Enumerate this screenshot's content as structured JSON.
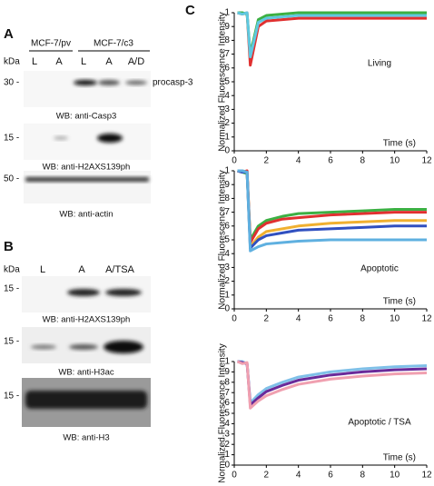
{
  "panel_a": {
    "label": "A",
    "groups": [
      "MCF-7/pv",
      "MCF-7/c3"
    ],
    "kda": "kDa",
    "lanes": [
      "L",
      "A",
      "L",
      "A",
      "A/D"
    ],
    "blots": [
      {
        "marker": "30 -",
        "annotation": "procasp-3",
        "caption": "WB: anti-Casp3"
      },
      {
        "marker": "15 -",
        "caption": "WB: anti-H2AXS139ph"
      },
      {
        "marker": "50 -",
        "caption": "WB: anti-actin"
      }
    ]
  },
  "panel_b": {
    "label": "B",
    "kda": "kDa",
    "lanes": [
      "L",
      "A",
      "A/TSA"
    ],
    "blots": [
      {
        "marker": "15 -",
        "caption": "WB: anti-H2AXS139ph"
      },
      {
        "marker": "15 -",
        "caption": "WB: anti-H3ac"
      },
      {
        "marker": "15 -",
        "caption": "WB: anti-H3"
      }
    ]
  },
  "panel_c": {
    "label": "C"
  },
  "chart_data": [
    {
      "type": "line",
      "annotation": "Living",
      "ylabel": "Normalized Fluorescence Intensity",
      "xlabel": "Time (s)",
      "x": [
        0.2,
        0.5,
        0.8,
        1,
        1.5,
        2,
        3,
        4,
        6,
        8,
        10,
        12
      ],
      "series": [
        {
          "color": "#e03030",
          "values": [
            1,
            0.99,
            1,
            0.62,
            0.9,
            0.94,
            0.95,
            0.96,
            0.96,
            0.96,
            0.96,
            0.96
          ]
        },
        {
          "color": "#3cb043",
          "values": [
            1,
            1,
            0.99,
            0.7,
            0.95,
            0.98,
            0.99,
            1,
            1,
            1,
            1,
            1
          ]
        },
        {
          "color": "#5fc8e0",
          "values": [
            1,
            0.99,
            1,
            0.68,
            0.93,
            0.96,
            0.97,
            0.98,
            0.98,
            0.98,
            0.98,
            0.98
          ]
        }
      ],
      "xlim": [
        0,
        12
      ],
      "ylim": [
        0,
        1
      ],
      "xticks": [
        0,
        2,
        4,
        6,
        8,
        10,
        12
      ],
      "yticks": [
        0,
        {
          "value": 0.1,
          "label": ".1"
        },
        {
          "value": 0.2,
          "label": ".2"
        },
        {
          "value": 0.3,
          "label": ".3"
        },
        {
          "value": 0.4,
          "label": ".4"
        },
        {
          "value": 0.5,
          "label": ".5"
        },
        {
          "value": 0.6,
          "label": ".6"
        },
        {
          "value": 0.7,
          "label": ".7"
        },
        {
          "value": 0.8,
          "label": ".8"
        },
        {
          "value": 0.9,
          "label": ".9"
        },
        1
      ]
    },
    {
      "type": "line",
      "annotation": "Apoptotic",
      "ylabel": "Normalized Fluorescence Intensity",
      "xlabel": "Time (s)",
      "x": [
        0.2,
        0.5,
        0.8,
        1,
        1.5,
        2,
        3,
        4,
        6,
        8,
        10,
        12
      ],
      "series": [
        {
          "color": "#3cb043",
          "values": [
            1,
            0.99,
            0.98,
            0.5,
            0.6,
            0.64,
            0.67,
            0.69,
            0.7,
            0.71,
            0.72,
            0.72
          ]
        },
        {
          "color": "#e03030",
          "values": [
            1,
            0.99,
            1,
            0.48,
            0.58,
            0.62,
            0.65,
            0.66,
            0.68,
            0.69,
            0.7,
            0.7
          ]
        },
        {
          "color": "#f0b030",
          "values": [
            1,
            1,
            0.99,
            0.45,
            0.52,
            0.56,
            0.58,
            0.6,
            0.62,
            0.63,
            0.64,
            0.64
          ]
        },
        {
          "color": "#3050c0",
          "values": [
            1,
            0.99,
            0.99,
            0.44,
            0.5,
            0.53,
            0.55,
            0.57,
            0.58,
            0.59,
            0.6,
            0.6
          ]
        },
        {
          "color": "#5fb0e0",
          "values": [
            1,
            1,
            0.99,
            0.42,
            0.45,
            0.47,
            0.48,
            0.49,
            0.5,
            0.5,
            0.5,
            0.5
          ]
        }
      ],
      "xlim": [
        0,
        12
      ],
      "ylim": [
        0,
        1
      ],
      "xticks": [
        0,
        2,
        4,
        6,
        8,
        10,
        12
      ],
      "yticks": [
        0,
        {
          "value": 0.1,
          "label": ".1"
        },
        {
          "value": 0.2,
          "label": ".2"
        },
        {
          "value": 0.3,
          "label": ".3"
        },
        {
          "value": 0.4,
          "label": ".4"
        },
        {
          "value": 0.5,
          "label": ".5"
        },
        {
          "value": 0.6,
          "label": ".6"
        },
        {
          "value": 0.7,
          "label": ".7"
        },
        {
          "value": 0.8,
          "label": ".8"
        },
        {
          "value": 0.9,
          "label": ".9"
        },
        1
      ]
    },
    {
      "type": "line",
      "annotation": "Apoptotic / TSA",
      "ylabel": "Normalized Fluorescence Intensity",
      "xlabel": "Time (s)",
      "x": [
        0.2,
        0.5,
        0.8,
        1,
        1.5,
        2,
        3,
        4,
        6,
        8,
        10,
        12
      ],
      "series": [
        {
          "color": "#7fc0e8",
          "values": [
            1,
            1,
            0.98,
            0.6,
            0.68,
            0.74,
            0.8,
            0.85,
            0.9,
            0.93,
            0.95,
            0.96
          ]
        },
        {
          "color": "#6a2a9a",
          "values": [
            1,
            0.99,
            0.98,
            0.58,
            0.65,
            0.71,
            0.77,
            0.82,
            0.87,
            0.9,
            0.92,
            0.93
          ]
        },
        {
          "color": "#f0a0b0",
          "values": [
            1,
            0.98,
            0.99,
            0.55,
            0.62,
            0.67,
            0.73,
            0.78,
            0.83,
            0.86,
            0.88,
            0.89
          ]
        }
      ],
      "xlim": [
        0,
        12
      ],
      "ylim": [
        0,
        1
      ],
      "xticks": [
        0,
        2,
        4,
        6,
        8,
        10,
        12
      ],
      "yticks": [
        0,
        {
          "value": 0.1,
          "label": ".1"
        },
        {
          "value": 0.2,
          "label": ".2"
        },
        {
          "value": 0.3,
          "label": ".3"
        },
        {
          "value": 0.4,
          "label": ".4"
        },
        {
          "value": 0.5,
          "label": ".5"
        },
        {
          "value": 0.6,
          "label": ".6"
        },
        {
          "value": 0.7,
          "label": ".7"
        },
        {
          "value": 0.8,
          "label": ".8"
        },
        {
          "value": 0.9,
          "label": ".9"
        },
        1
      ]
    }
  ]
}
